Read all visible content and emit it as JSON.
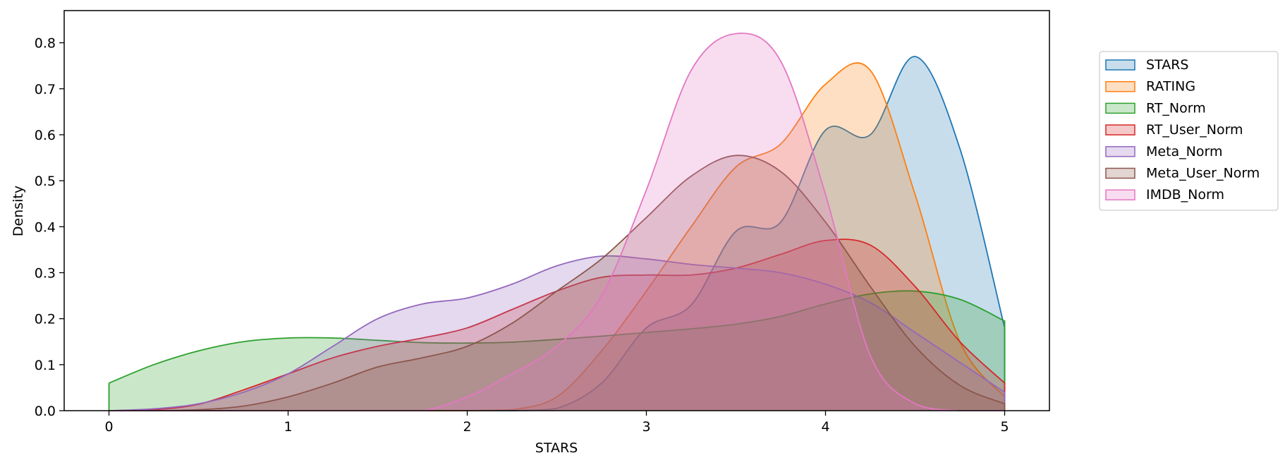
{
  "chart_data": {
    "type": "area",
    "title": "",
    "xlabel": "STARS",
    "ylabel": "Density",
    "xlim": [
      -0.25,
      5.25
    ],
    "ylim": [
      0,
      0.87
    ],
    "xticks": [
      "0",
      "1",
      "2",
      "3",
      "4",
      "5"
    ],
    "yticks": [
      "0.0",
      "0.1",
      "0.2",
      "0.3",
      "0.4",
      "0.5",
      "0.6",
      "0.7",
      "0.8"
    ],
    "grid": false,
    "legend_position": "outside-right",
    "x": [
      0,
      0.25,
      0.5,
      0.75,
      1.0,
      1.25,
      1.5,
      1.75,
      2.0,
      2.25,
      2.5,
      2.75,
      3.0,
      3.25,
      3.5,
      3.75,
      4.0,
      4.25,
      4.5,
      4.75,
      5.0
    ],
    "series": [
      {
        "name": "STARS",
        "color": "#1f77b4",
        "values": [
          0,
          0,
          0,
          0,
          0,
          0,
          0,
          0,
          0,
          0,
          0.005,
          0.06,
          0.18,
          0.23,
          0.39,
          0.41,
          0.61,
          0.6,
          0.77,
          0.57,
          0.18
        ]
      },
      {
        "name": "RATING",
        "color": "#ff7f0e",
        "values": [
          0,
          0,
          0,
          0,
          0,
          0,
          0,
          0,
          0,
          0.002,
          0.03,
          0.13,
          0.26,
          0.4,
          0.53,
          0.58,
          0.71,
          0.74,
          0.47,
          0.15,
          0.03
        ]
      },
      {
        "name": "RT_Norm",
        "color": "#2ca02c",
        "values": [
          0.06,
          0.1,
          0.13,
          0.15,
          0.158,
          0.158,
          0.153,
          0.148,
          0.147,
          0.149,
          0.155,
          0.162,
          0.17,
          0.178,
          0.188,
          0.205,
          0.232,
          0.254,
          0.26,
          0.242,
          0.195
        ]
      },
      {
        "name": "RT_User_Norm",
        "color": "#d62728",
        "values": [
          0,
          0.002,
          0.014,
          0.045,
          0.08,
          0.115,
          0.14,
          0.158,
          0.18,
          0.22,
          0.26,
          0.29,
          0.295,
          0.295,
          0.31,
          0.34,
          0.37,
          0.36,
          0.27,
          0.15,
          0.06
        ]
      },
      {
        "name": "Meta_Norm",
        "color": "#9467bd",
        "values": [
          0,
          0.004,
          0.015,
          0.04,
          0.08,
          0.14,
          0.2,
          0.232,
          0.245,
          0.275,
          0.315,
          0.336,
          0.33,
          0.318,
          0.31,
          0.3,
          0.275,
          0.235,
          0.17,
          0.105,
          0.04
        ]
      },
      {
        "name": "Meta_User_Norm",
        "color": "#8c564b",
        "values": [
          0,
          0,
          0.002,
          0.01,
          0.03,
          0.06,
          0.095,
          0.115,
          0.14,
          0.19,
          0.26,
          0.33,
          0.42,
          0.51,
          0.555,
          0.52,
          0.41,
          0.27,
          0.14,
          0.055,
          0.015
        ]
      },
      {
        "name": "IMDB_Norm",
        "color": "#e377c2",
        "values": [
          0,
          0,
          0,
          0,
          0,
          0,
          0,
          0,
          0.03,
          0.08,
          0.14,
          0.25,
          0.48,
          0.74,
          0.82,
          0.76,
          0.47,
          0.12,
          0.015,
          0,
          0
        ]
      }
    ]
  }
}
